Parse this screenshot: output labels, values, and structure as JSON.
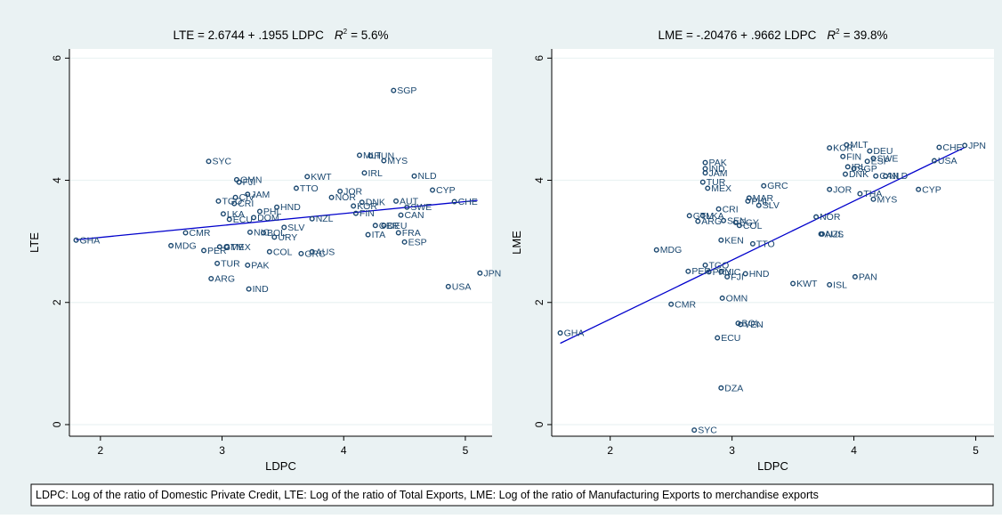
{
  "chart_data": [
    {
      "type": "scatter",
      "title": "LTE = 2.6744 + .1955 LDPC",
      "r2_symbol": "R",
      "r2_exp": "2",
      "r2_text": "= 5.6%",
      "xlabel": "LDPC",
      "ylabel": "LTE",
      "color": "#1a476f",
      "grid": true,
      "xlim": [
        1.745,
        5.22
      ],
      "ylim": [
        -0.19,
        6.15
      ],
      "xticks": [
        2,
        3,
        4,
        5
      ],
      "yticks": [
        0,
        2,
        4,
        6
      ],
      "point_labels": [
        "GHA",
        "MDG",
        "PER",
        "CMR",
        "GTM",
        "MEX",
        "TUR",
        "PAK",
        "ARG",
        "IND",
        "SYC",
        "OMN",
        "FJI",
        "TGO",
        "CIV",
        "JAM",
        "CRI",
        "LKA",
        "ECU",
        "PHL",
        "HND",
        "DOM",
        "NIC",
        "BOL",
        "SLV",
        "URY",
        "COL",
        "GRC",
        "AUS",
        "KWT",
        "TTO",
        "JOR",
        "NOR",
        "NZL",
        "DNK",
        "KOR",
        "FIN",
        "SGP",
        "MLT",
        "HUN",
        "MYS",
        "IRL",
        "NLD",
        "CYP",
        "CHE",
        "AUT",
        "SWE",
        "CAN",
        "GBR",
        "DEU",
        "ITA",
        "FRA",
        "ESP",
        "USA",
        "JPN"
      ],
      "x": [
        1.8,
        2.58,
        2.85,
        2.7,
        2.98,
        3.04,
        2.96,
        3.21,
        2.91,
        3.22,
        2.89,
        3.12,
        3.14,
        2.97,
        3.11,
        3.21,
        3.1,
        3.01,
        3.06,
        3.31,
        3.45,
        3.26,
        3.23,
        3.34,
        3.51,
        3.43,
        3.39,
        3.65,
        3.74,
        3.7,
        3.61,
        3.97,
        3.9,
        3.74,
        4.15,
        4.08,
        4.1,
        4.41,
        4.13,
        4.22,
        4.33,
        4.17,
        4.58,
        4.73,
        4.91,
        4.43,
        4.52,
        4.47,
        4.26,
        4.33,
        4.2,
        4.45,
        4.5,
        4.86,
        5.12
      ],
      "values": [
        3.02,
        2.93,
        2.85,
        3.14,
        2.91,
        2.91,
        2.64,
        2.61,
        2.39,
        2.22,
        4.31,
        4.01,
        3.97,
        3.66,
        3.72,
        3.77,
        3.62,
        3.45,
        3.36,
        3.49,
        3.56,
        3.39,
        3.15,
        3.14,
        3.23,
        3.07,
        2.83,
        2.8,
        2.83,
        4.06,
        3.87,
        3.82,
        3.72,
        3.37,
        3.64,
        3.58,
        3.46,
        5.47,
        4.41,
        4.4,
        4.32,
        4.12,
        4.07,
        3.84,
        3.65,
        3.66,
        3.56,
        3.43,
        3.26,
        3.26,
        3.11,
        3.14,
        2.99,
        2.26,
        2.48
      ],
      "fit": {
        "x": [
          1.8,
          5.1
        ],
        "values": [
          3.026,
          3.671
        ],
        "color": "#0000cc"
      }
    },
    {
      "type": "scatter",
      "title": "LME = -.20476 + .9662 LDPC",
      "r2_symbol": "R",
      "r2_exp": "2",
      "r2_text": "= 39.8%",
      "xlabel": "LDPC",
      "ylabel": "LME",
      "color": "#1a476f",
      "grid": true,
      "xlim": [
        1.52,
        5.15
      ],
      "ylim": [
        -0.19,
        6.15
      ],
      "xticks": [
        2,
        3,
        4,
        5
      ],
      "yticks": [
        0,
        2,
        4,
        6
      ],
      "point_labels": [
        "GHA",
        "MDG",
        "CMR",
        "PER",
        "TGO",
        "PRY",
        "NIC",
        "FJI",
        "HND",
        "OMN",
        "BOL",
        "VEN",
        "ECU",
        "DZA",
        "SYC",
        "KEN",
        "TTO",
        "KWT",
        "ISL",
        "PAN",
        "GTM",
        "LKA",
        "ARG",
        "SEN",
        "EGY",
        "COL",
        "CRI",
        "MEX",
        "TUR",
        "PAK",
        "IND",
        "JAM",
        "PHL",
        "MAR",
        "SLV",
        "GRC",
        "JOR",
        "NOR",
        "AUS",
        "NZL",
        "THA",
        "MYS",
        "KOR",
        "MLT",
        "FIN",
        "IRL",
        "DNK",
        "SGP",
        "DEU",
        "SWE",
        "ESP",
        "CAN",
        "NLD",
        "CYP",
        "CHE",
        "USA",
        "JPN"
      ],
      "x": [
        1.59,
        2.38,
        2.5,
        2.64,
        2.78,
        2.81,
        2.91,
        2.96,
        3.11,
        2.92,
        3.05,
        3.07,
        2.88,
        2.91,
        2.69,
        2.91,
        3.17,
        3.5,
        3.8,
        4.01,
        2.65,
        2.76,
        2.72,
        2.93,
        3.03,
        3.06,
        2.89,
        2.8,
        2.76,
        2.78,
        2.78,
        2.78,
        3.13,
        3.14,
        3.22,
        3.26,
        3.8,
        3.69,
        3.73,
        3.74,
        4.05,
        4.16,
        3.8,
        3.94,
        3.91,
        3.95,
        3.93,
        4.0,
        4.13,
        4.16,
        4.11,
        4.18,
        4.26,
        4.53,
        4.7,
        4.66,
        4.91
      ],
      "values": [
        1.5,
        2.86,
        1.97,
        2.51,
        2.61,
        2.5,
        2.5,
        2.42,
        2.47,
        2.07,
        1.66,
        1.64,
        1.42,
        0.6,
        -0.09,
        3.02,
        2.96,
        2.31,
        2.29,
        2.42,
        3.42,
        3.42,
        3.33,
        3.34,
        3.31,
        3.26,
        3.53,
        3.87,
        3.97,
        4.29,
        4.19,
        4.12,
        3.66,
        3.71,
        3.59,
        3.91,
        3.85,
        3.4,
        3.12,
        3.12,
        3.78,
        3.69,
        4.53,
        4.58,
        4.39,
        4.22,
        4.1,
        4.19,
        4.48,
        4.36,
        4.31,
        4.07,
        4.07,
        3.85,
        4.54,
        4.32,
        4.57
      ],
      "fit": {
        "x": [
          1.59,
          4.91
        ],
        "values": [
          1.331,
          4.539
        ],
        "color": "#0000cc"
      }
    }
  ],
  "note": "LDPC: Log of the ratio of Domestic Private Credit, LTE: Log of the ratio of Total Exports, LME: Log of the ratio of Manufacturing Exports to merchandise exports"
}
